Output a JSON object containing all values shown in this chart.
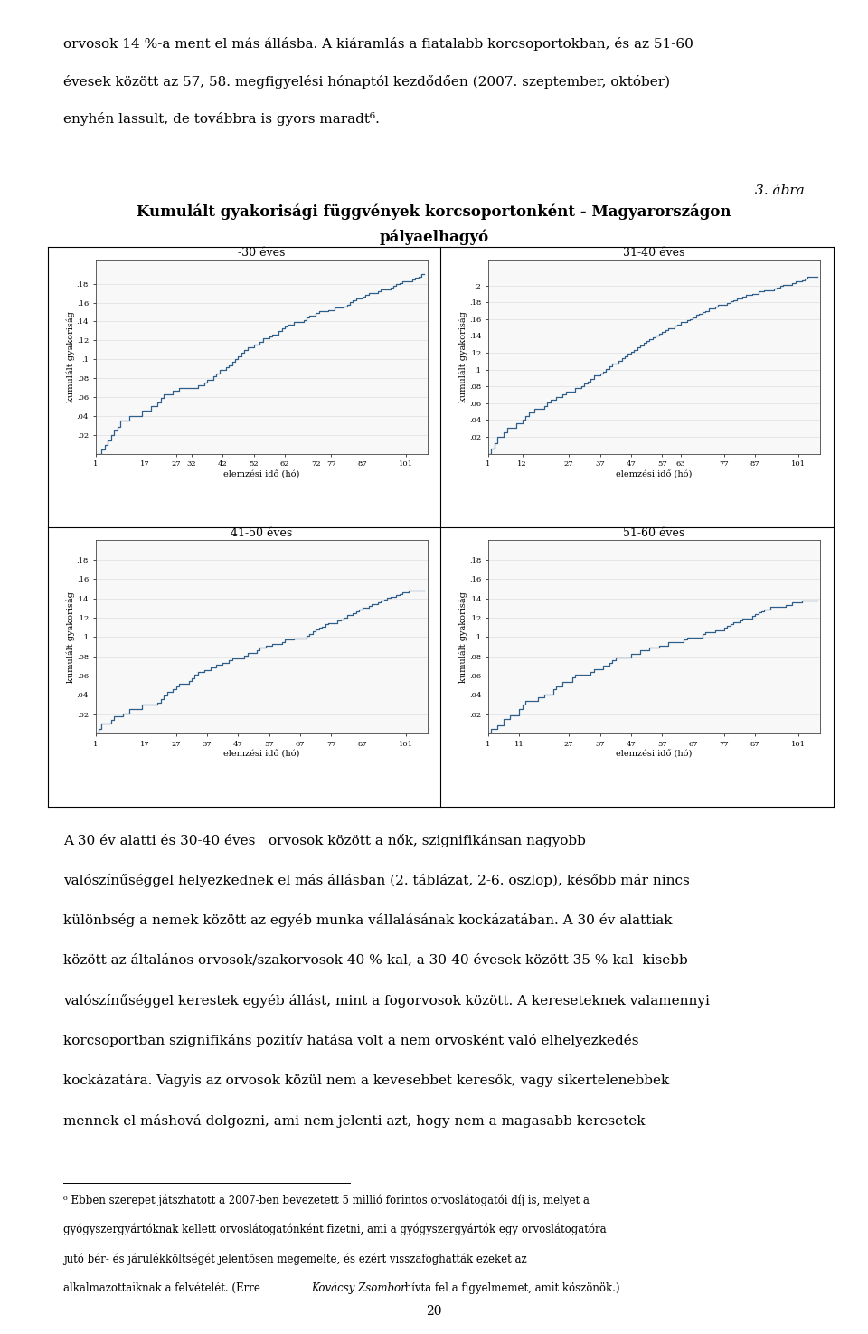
{
  "top_text_lines": [
    "orvosok 14 %-a ment el más állásba. A kiáramlás a fiatalabb korcsoportokban, és az 51-60",
    "évesek között az 57, 58. megfigyelési hónaptól kezdődően (2007. szeptember, október)",
    "enyhén lassult, de továbbra is gyors maradt⁶."
  ],
  "figure_label": "3. ábra",
  "chart_title_line1": "Kumulált gyakorisági függvények korcsoportonként - Magyarországon",
  "chart_title_line2": "pályaelhagyó",
  "panels": [
    {
      "title": "-30 éves",
      "yticks": [
        0.02,
        0.04,
        0.06,
        0.08,
        0.1,
        0.12,
        0.14,
        0.16,
        0.18
      ],
      "ytick_labels": [
        ".02",
        ".04",
        ".06",
        ".08",
        ".1",
        ".12",
        ".14",
        ".16",
        ".18"
      ],
      "xticks": [
        1,
        17,
        27,
        32,
        42,
        52,
        62,
        72,
        77,
        87,
        101
      ],
      "xtick_labels": [
        "1",
        "17",
        "27",
        "32",
        "42",
        "52",
        "62",
        "72",
        "77",
        "87",
        "101"
      ],
      "ymax": 0.205,
      "xmax": 108,
      "curve_seed": 10,
      "curve_ymax": 0.19,
      "curve_steepness": 2.2,
      "n_steps": 80,
      "n_jumps": 65
    },
    {
      "title": "31-40 éves",
      "yticks": [
        0.02,
        0.04,
        0.06,
        0.08,
        0.1,
        0.12,
        0.14,
        0.16,
        0.18,
        0.2
      ],
      "ytick_labels": [
        ".02",
        ".04",
        ".06",
        ".08",
        ".1",
        ".12",
        ".14",
        ".16",
        ".18",
        ".2"
      ],
      "xticks": [
        1,
        12,
        27,
        37,
        47,
        57,
        63,
        77,
        87,
        101
      ],
      "xtick_labels": [
        "1",
        "12",
        "27",
        "37",
        "47",
        "57",
        "63",
        "77",
        "87",
        "101"
      ],
      "ymax": 0.23,
      "xmax": 108,
      "curve_seed": 20,
      "curve_ymax": 0.21,
      "curve_steepness": 2.8,
      "n_steps": 90,
      "n_jumps": 75
    },
    {
      "title": "41-50 éves",
      "yticks": [
        0.02,
        0.04,
        0.06,
        0.08,
        0.1,
        0.12,
        0.14,
        0.16,
        0.18
      ],
      "ytick_labels": [
        ".02",
        ".04",
        ".06",
        ".08",
        ".1",
        ".12",
        ".14",
        ".16",
        ".18"
      ],
      "xticks": [
        1,
        17,
        27,
        37,
        47,
        57,
        67,
        77,
        87,
        101
      ],
      "xtick_labels": [
        "1",
        "17",
        "27",
        "37",
        "47",
        "57",
        "67",
        "77",
        "87",
        "101"
      ],
      "ymax": 0.2,
      "xmax": 108,
      "curve_seed": 30,
      "curve_ymax": 0.148,
      "curve_steepness": 2.5,
      "n_steps": 80,
      "n_jumps": 60
    },
    {
      "title": "51-60 éves",
      "yticks": [
        0.02,
        0.04,
        0.06,
        0.08,
        0.1,
        0.12,
        0.14,
        0.16,
        0.18
      ],
      "ytick_labels": [
        ".02",
        ".04",
        ".06",
        ".08",
        ".1",
        ".12",
        ".14",
        ".16",
        ".18"
      ],
      "xticks": [
        1,
        11,
        27,
        37,
        47,
        57,
        67,
        77,
        87,
        101
      ],
      "xtick_labels": [
        "1",
        "11",
        "27",
        "37",
        "47",
        "57",
        "67",
        "77",
        "87",
        "101"
      ],
      "ymax": 0.2,
      "xmax": 108,
      "curve_seed": 40,
      "curve_ymax": 0.138,
      "curve_steepness": 2.0,
      "n_steps": 75,
      "n_jumps": 45
    }
  ],
  "ylabel": "kumulált gyakoriság",
  "xlabel": "elemzési idő (hó)",
  "bottom_para1": "A 30 év alatti és 30-40 éves   orvosok között a nők, szignifikánsan nagyobb valószínűséggel helyezkednek el más állásban (2. táblázat, 2-6. oszlop), később már nincs különbség a nemek között az egyéb munka vállalásának kockázatában. A 30 év alattiak között az általános orvosok/szakorvosok 40 %-kal, a 30-40 évesek között 35 %-kal  kisebb valószínűséggel kerestek egyéb állást, mint a fogorvosok között. A kereseteknek valamennyi korcsoportban szignifikáns pozitív hatása volt a nem orvosként való elhelyezkedés kockázatára. Vagyis az orvosok közül nem a kevesebbet keresők, vagy sikertelenebbek mennek el máshová dolgozni, ami nem jelenti azt, hogy nem a magasabb keresetek",
  "footnote_lines": [
    "⁶ Ebben szerepet játszhatott a 2007-ben bevezetett 5 millió forintos orvoslátogatói díj is, melyet a",
    "gyógyszergyártóknak kellett orvoslátogatónként fizetni, ami a gyógyszergyártók egy orvoslátogatóra",
    "jutó bér- és járulékköltségét jelentősen megemelte, és ezért visszafoghatták ezeket az",
    "alkalmazottaiknak a felvételét. (Erre Kovácsy Zsombor hívta fel a figyelmemet, amit köszönök.)"
  ],
  "page_number": "20",
  "line_color": "#2d5f8a",
  "background_color": "#ffffff",
  "grid_color": "#d0d0d0",
  "border_color": "#000000",
  "text_color": "#000000"
}
